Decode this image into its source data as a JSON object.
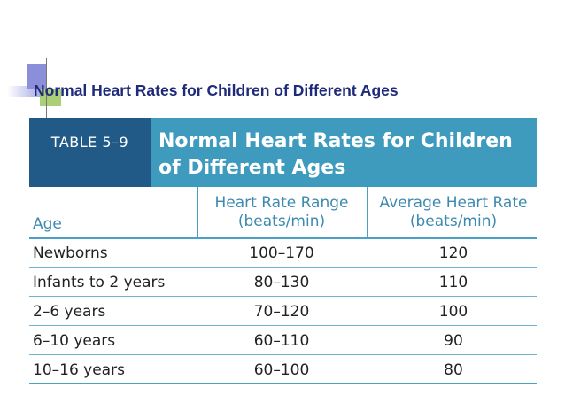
{
  "slide": {
    "title": "Normal Heart Rates for Children of Different Ages"
  },
  "table": {
    "label": "TABLE 5–9",
    "title_line1": "Normal Heart Rates for Children",
    "title_line2": "of Different Ages",
    "columns": {
      "age": "Age",
      "range_line1": "Heart Rate Range",
      "range_line2": "(beats/min)",
      "avg_line1": "Average Heart Rate",
      "avg_line2": "(beats/min)"
    },
    "rows": [
      {
        "age": "Newborns",
        "range": "100–170",
        "avg": "120"
      },
      {
        "age": "Infants to 2 years",
        "range": "80–130",
        "avg": "110"
      },
      {
        "age": "2–6 years",
        "range": "70–120",
        "avg": "100"
      },
      {
        "age": "6–10 years",
        "range": "60–110",
        "avg": "90"
      },
      {
        "age": "10–16 years",
        "range": "60–100",
        "avg": "80"
      }
    ]
  },
  "colors": {
    "title_text": "#1f2a7a",
    "header_band": "#3f9bbd",
    "label_box": "#215a86",
    "column_header_text": "#3c8ab0"
  }
}
